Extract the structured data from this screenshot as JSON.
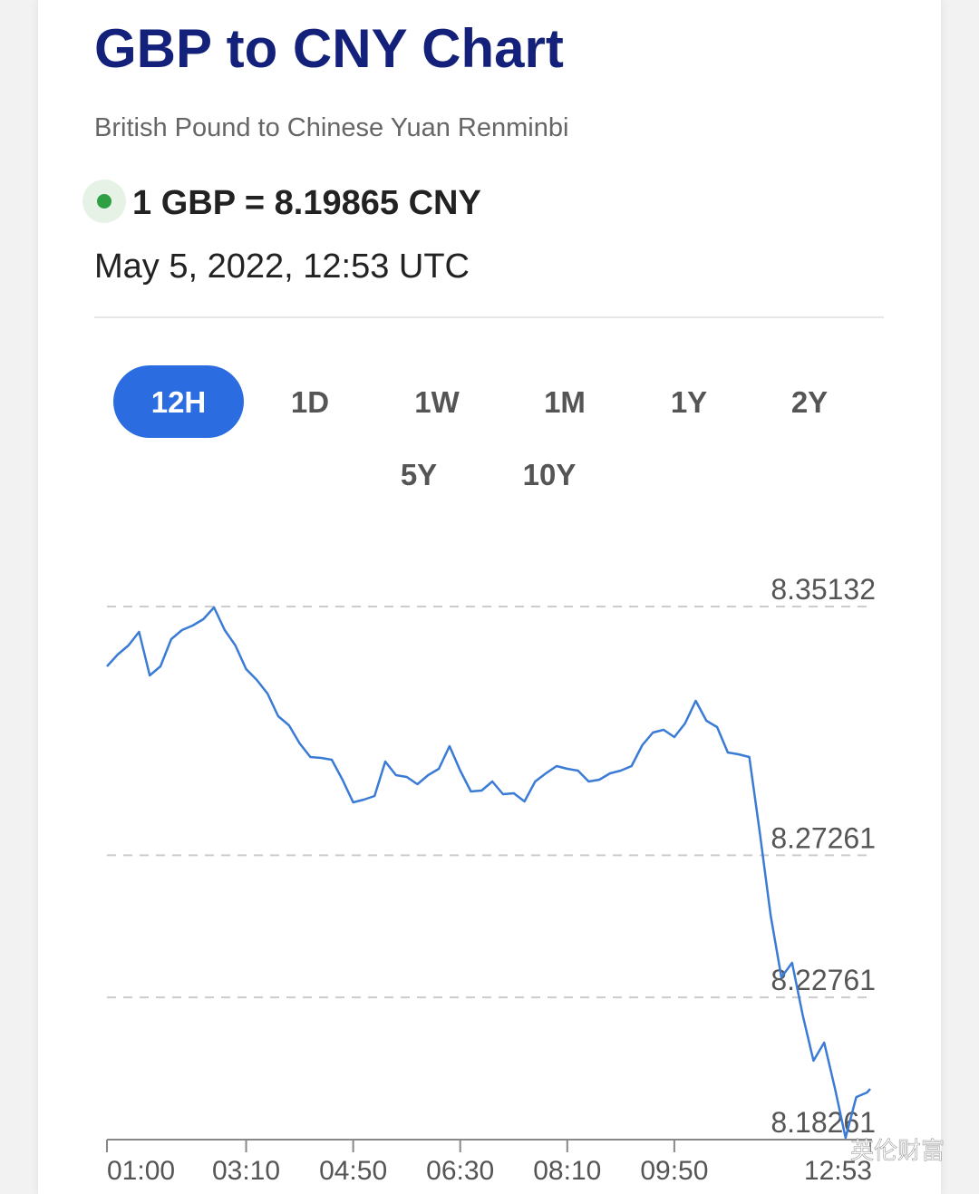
{
  "header": {
    "title": "GBP to CNY Chart",
    "subtitle": "British Pound to Chinese Yuan Renminbi",
    "rate": "1 GBP = 8.19865 CNY",
    "timestamp": "May 5, 2022, 12:53 UTC"
  },
  "ranges": [
    "12H",
    "1D",
    "1W",
    "1M",
    "1Y",
    "2Y",
    "5Y",
    "10Y"
  ],
  "watermark": "英伦财富",
  "chart_data": {
    "type": "line",
    "color": "#3a7bd5",
    "grid": true,
    "x": [
      "01:00",
      "01:10",
      "01:20",
      "01:30",
      "01:40",
      "01:50",
      "02:00",
      "02:10",
      "02:20",
      "02:30",
      "02:40",
      "02:50",
      "03:00",
      "03:10",
      "03:20",
      "03:30",
      "03:40",
      "03:50",
      "04:00",
      "04:10",
      "04:20",
      "04:30",
      "04:40",
      "04:50",
      "05:00",
      "05:10",
      "05:20",
      "05:30",
      "05:40",
      "05:50",
      "06:00",
      "06:10",
      "06:20",
      "06:30",
      "06:40",
      "06:50",
      "07:00",
      "07:10",
      "07:20",
      "07:30",
      "07:40",
      "07:50",
      "08:00",
      "08:10",
      "08:20",
      "08:30",
      "08:40",
      "08:50",
      "09:00",
      "09:10",
      "09:20",
      "09:30",
      "09:40",
      "09:50",
      "10:00",
      "10:10",
      "10:20",
      "10:30",
      "10:40",
      "10:50",
      "11:00",
      "11:10",
      "11:20",
      "11:30",
      "11:40",
      "11:50",
      "12:00",
      "12:10",
      "12:20",
      "12:30",
      "12:40",
      "12:50",
      "12:53"
    ],
    "values": [
      8.33238,
      8.33611,
      8.33898,
      8.34329,
      8.32951,
      8.33238,
      8.34099,
      8.34386,
      8.34529,
      8.3473,
      8.35103,
      8.34386,
      8.33898,
      8.33152,
      8.32808,
      8.32377,
      8.3166,
      8.31373,
      8.30799,
      8.30369,
      8.3034,
      8.30283,
      8.29651,
      8.28934,
      8.2902,
      8.29135,
      8.30225,
      8.29795,
      8.29737,
      8.29508,
      8.29795,
      8.29996,
      8.30713,
      8.29938,
      8.29278,
      8.29307,
      8.29594,
      8.29192,
      8.29221,
      8.28963,
      8.29594,
      8.29852,
      8.30082,
      8.29996,
      8.29938,
      8.29594,
      8.29651,
      8.29852,
      8.29938,
      8.30082,
      8.30742,
      8.31143,
      8.3123,
      8.31,
      8.3143,
      8.32148,
      8.31516,
      8.31316,
      8.30512,
      8.30455,
      8.30369,
      8.2793,
      8.25347,
      8.23396,
      8.23855,
      8.22191,
      8.20756,
      8.2133,
      8.19895,
      8.18317,
      8.19608,
      8.19752,
      8.19865
    ],
    "xlim": [
      "01:00",
      "12:53"
    ],
    "xticks": [
      "01:00",
      "03:10",
      "04:50",
      "06:30",
      "08:10",
      "09:50",
      "12:53"
    ],
    "ylim": [
      8.18261,
      8.35132
    ],
    "yticks": [
      8.18261,
      8.22761,
      8.27261,
      8.35132
    ]
  }
}
